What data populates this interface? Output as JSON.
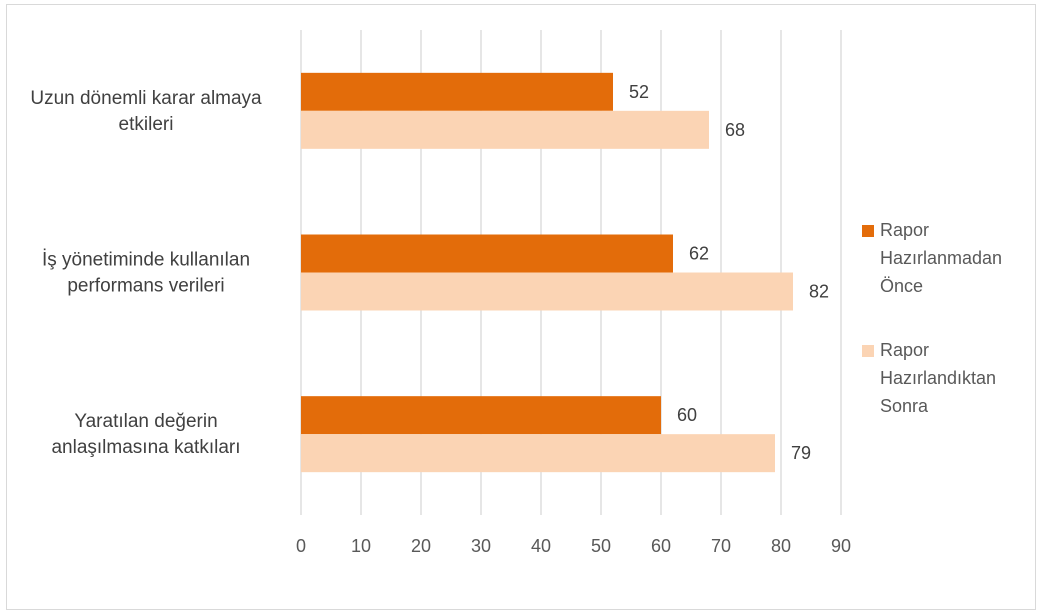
{
  "chart_data": {
    "type": "bar",
    "orientation": "horizontal",
    "categories": [
      [
        "Uzun dönemli karar almaya",
        "etkileri"
      ],
      [
        "İş yönetiminde kullanılan",
        "performans verileri"
      ],
      [
        "Yaratılan değerin",
        "anlaşılmasına katkıları"
      ]
    ],
    "series": [
      {
        "name": [
          "Rapor",
          "Hazırlanmadan",
          "Önce"
        ],
        "color": "#e36c0a",
        "values": [
          52,
          62,
          60
        ]
      },
      {
        "name": [
          "Rapor",
          "Hazırlandıktan",
          "Sonra"
        ],
        "color": "#fbd4b4",
        "values": [
          68,
          82,
          79
        ]
      }
    ],
    "xlim": [
      0,
      90
    ],
    "xticks": [
      0,
      10,
      20,
      30,
      40,
      50,
      60,
      70,
      80,
      90
    ],
    "grid": "vertical",
    "gridColor": "#d9d9d9",
    "legend": "right",
    "data_labels": true
  }
}
